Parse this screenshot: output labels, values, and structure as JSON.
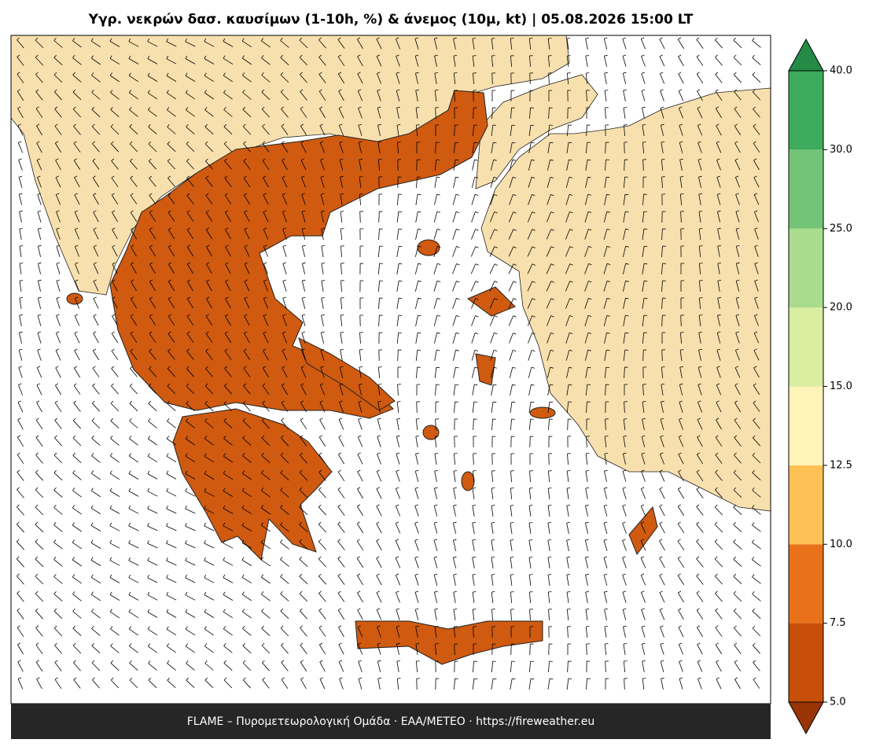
{
  "title": "Υγρ. νεκρών δασ. καυσίμων (1-10h, %) & άνεμος (10μ, kt)  |  05.08.2026 15:00 LT",
  "footer": "FLAME – Πυρομετεωρολογική Ομάδα · ΕΑΑ/METEO · https://fireweather.eu",
  "colorbar": {
    "levels": [
      {
        "value": 5,
        "label": "5.0"
      },
      {
        "value": 7.5,
        "label": "7.5"
      },
      {
        "value": 10,
        "label": "10.0"
      },
      {
        "value": 12.5,
        "label": "12.5"
      },
      {
        "value": 15,
        "label": "15.0"
      },
      {
        "value": 20,
        "label": "20.0"
      },
      {
        "value": 25,
        "label": "25.0"
      },
      {
        "value": 30,
        "label": "30.0"
      },
      {
        "value": 40,
        "label": "40.0"
      }
    ],
    "colors": [
      "#c84f08",
      "#e8711a",
      "#fdc054",
      "#fff4b8",
      "#d9eea0",
      "#a9dc8c",
      "#73c477",
      "#3dab5c"
    ],
    "under_color": "#993404",
    "over_color": "#238b45"
  }
}
